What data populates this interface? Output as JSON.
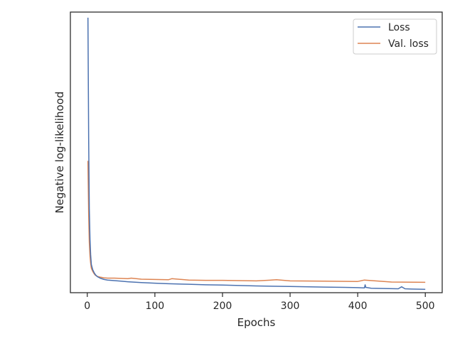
{
  "chart_data": {
    "type": "line",
    "title": "",
    "xlabel": "Epochs",
    "ylabel": "Negative log-likelihood",
    "xlim": [
      -25,
      525
    ],
    "ylim": [
      0,
      1
    ],
    "x_ticks": [
      0,
      100,
      200,
      300,
      400,
      500
    ],
    "y_ticks_visible": false,
    "grid": false,
    "legend_position": "top-right",
    "series": [
      {
        "name": "Loss",
        "color": "#4c72b0",
        "x": [
          1,
          2,
          3,
          4,
          5,
          6,
          8,
          10,
          12,
          15,
          20,
          25,
          30,
          40,
          50,
          60,
          80,
          100,
          120,
          150,
          175,
          200,
          250,
          300,
          350,
          380,
          400,
          410,
          411,
          412,
          420,
          440,
          460,
          465,
          470,
          480,
          500
        ],
        "y": [
          0.98,
          0.55,
          0.3,
          0.19,
          0.135,
          0.1,
          0.082,
          0.072,
          0.064,
          0.057,
          0.051,
          0.047,
          0.045,
          0.043,
          0.041,
          0.039,
          0.036,
          0.034,
          0.032,
          0.03,
          0.028,
          0.027,
          0.024,
          0.022,
          0.02,
          0.019,
          0.018,
          0.017,
          0.028,
          0.019,
          0.016,
          0.015,
          0.014,
          0.021,
          0.014,
          0.013,
          0.012
        ]
      },
      {
        "name": "Val. loss",
        "color": "#dd8452",
        "x": [
          1,
          2,
          3,
          4,
          5,
          6,
          8,
          10,
          12,
          15,
          20,
          25,
          30,
          40,
          50,
          60,
          65,
          80,
          100,
          120,
          125,
          150,
          175,
          200,
          250,
          280,
          300,
          350,
          400,
          410,
          450,
          500
        ],
        "y": [
          0.47,
          0.28,
          0.18,
          0.13,
          0.105,
          0.087,
          0.076,
          0.068,
          0.062,
          0.058,
          0.055,
          0.053,
          0.052,
          0.052,
          0.051,
          0.05,
          0.052,
          0.048,
          0.047,
          0.046,
          0.05,
          0.045,
          0.044,
          0.044,
          0.042,
          0.046,
          0.042,
          0.041,
          0.04,
          0.045,
          0.038,
          0.037
        ]
      }
    ]
  }
}
